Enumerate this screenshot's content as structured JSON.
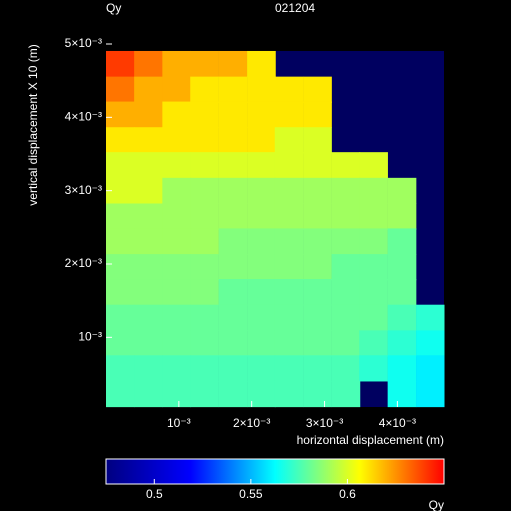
{
  "chart_data": {
    "type": "heatmap",
    "title": "Qy",
    "subtitle": "021204",
    "x_label": "horizontal displacement (m)",
    "y_label": "vertical displacement X 10 (m)",
    "colorbar_label": "Qy",
    "xlim": [
      0,
      0.00464
    ],
    "ylim": [
      5e-05,
      0.005
    ],
    "xticks": [
      {
        "value": 0.001,
        "label": "10⁻³"
      },
      {
        "value": 0.002,
        "label": "2×10⁻³"
      },
      {
        "value": 0.003,
        "label": "3×10⁻³"
      },
      {
        "value": 0.004,
        "label": "4×10⁻³"
      }
    ],
    "yticks": [
      {
        "value": 0.001,
        "label": "10⁻³"
      },
      {
        "value": 0.002,
        "label": "2×10⁻³"
      },
      {
        "value": 0.003,
        "label": "3×10⁻³"
      },
      {
        "value": 0.004,
        "label": "4×10⁻³"
      },
      {
        "value": 0.005,
        "label": "5×10⁻³"
      }
    ],
    "clim": [
      0.475,
      0.65
    ],
    "cticks": [
      0.5,
      0.55,
      0.6
    ],
    "colorscale": [
      "#000080",
      "#0000ff",
      "#00ffff",
      "#ffff00",
      "#ff0000"
    ],
    "background": "#000060",
    "x": [
      0.000193,
      0.00058,
      0.000967,
      0.00135,
      0.00174,
      0.00213,
      0.00251,
      0.0029,
      0.00329,
      0.00367,
      0.00406,
      0.00445
    ],
    "y": [
      0.00473,
      0.00438,
      0.00404,
      0.00369,
      0.00335,
      0.003,
      0.00265,
      0.00231,
      0.00196,
      0.00162,
      0.00127,
      0.00092,
      0.00058,
      0.00023
    ],
    "z": [
      [
        0.64,
        0.63,
        0.62,
        0.62,
        0.62,
        0.61,
        null,
        null,
        null,
        null,
        null,
        null
      ],
      [
        0.63,
        0.62,
        0.62,
        0.61,
        0.61,
        0.61,
        0.61,
        0.61,
        null,
        null,
        null,
        null
      ],
      [
        0.62,
        0.62,
        0.61,
        0.61,
        0.61,
        0.61,
        0.61,
        0.61,
        null,
        null,
        null,
        null
      ],
      [
        0.61,
        0.61,
        0.61,
        0.61,
        0.61,
        0.61,
        0.6,
        0.6,
        null,
        null,
        null,
        null
      ],
      [
        0.6,
        0.6,
        0.6,
        0.6,
        0.6,
        0.6,
        0.6,
        0.6,
        0.6,
        0.6,
        null,
        null
      ],
      [
        0.6,
        0.6,
        0.59,
        0.59,
        0.59,
        0.59,
        0.59,
        0.59,
        0.59,
        0.59,
        0.59,
        null
      ],
      [
        0.59,
        0.59,
        0.59,
        0.59,
        0.59,
        0.59,
        0.59,
        0.59,
        0.59,
        0.59,
        0.59,
        null
      ],
      [
        0.59,
        0.59,
        0.59,
        0.59,
        0.585,
        0.585,
        0.585,
        0.585,
        0.585,
        0.585,
        0.58,
        null
      ],
      [
        0.585,
        0.585,
        0.585,
        0.585,
        0.585,
        0.585,
        0.585,
        0.585,
        0.58,
        0.58,
        0.58,
        null
      ],
      [
        0.585,
        0.585,
        0.585,
        0.585,
        0.58,
        0.58,
        0.58,
        0.58,
        0.58,
        0.58,
        0.58,
        null
      ],
      [
        0.58,
        0.58,
        0.58,
        0.58,
        0.58,
        0.58,
        0.58,
        0.58,
        0.58,
        0.58,
        0.575,
        0.57
      ],
      [
        0.58,
        0.58,
        0.58,
        0.58,
        0.58,
        0.58,
        0.58,
        0.58,
        0.58,
        0.575,
        0.57,
        0.565
      ],
      [
        0.575,
        0.575,
        0.575,
        0.575,
        0.575,
        0.575,
        0.575,
        0.575,
        0.575,
        0.57,
        0.565,
        0.56
      ],
      [
        0.575,
        0.575,
        0.575,
        0.575,
        0.575,
        0.575,
        0.575,
        0.575,
        0.575,
        null,
        0.565,
        0.56
      ]
    ]
  }
}
